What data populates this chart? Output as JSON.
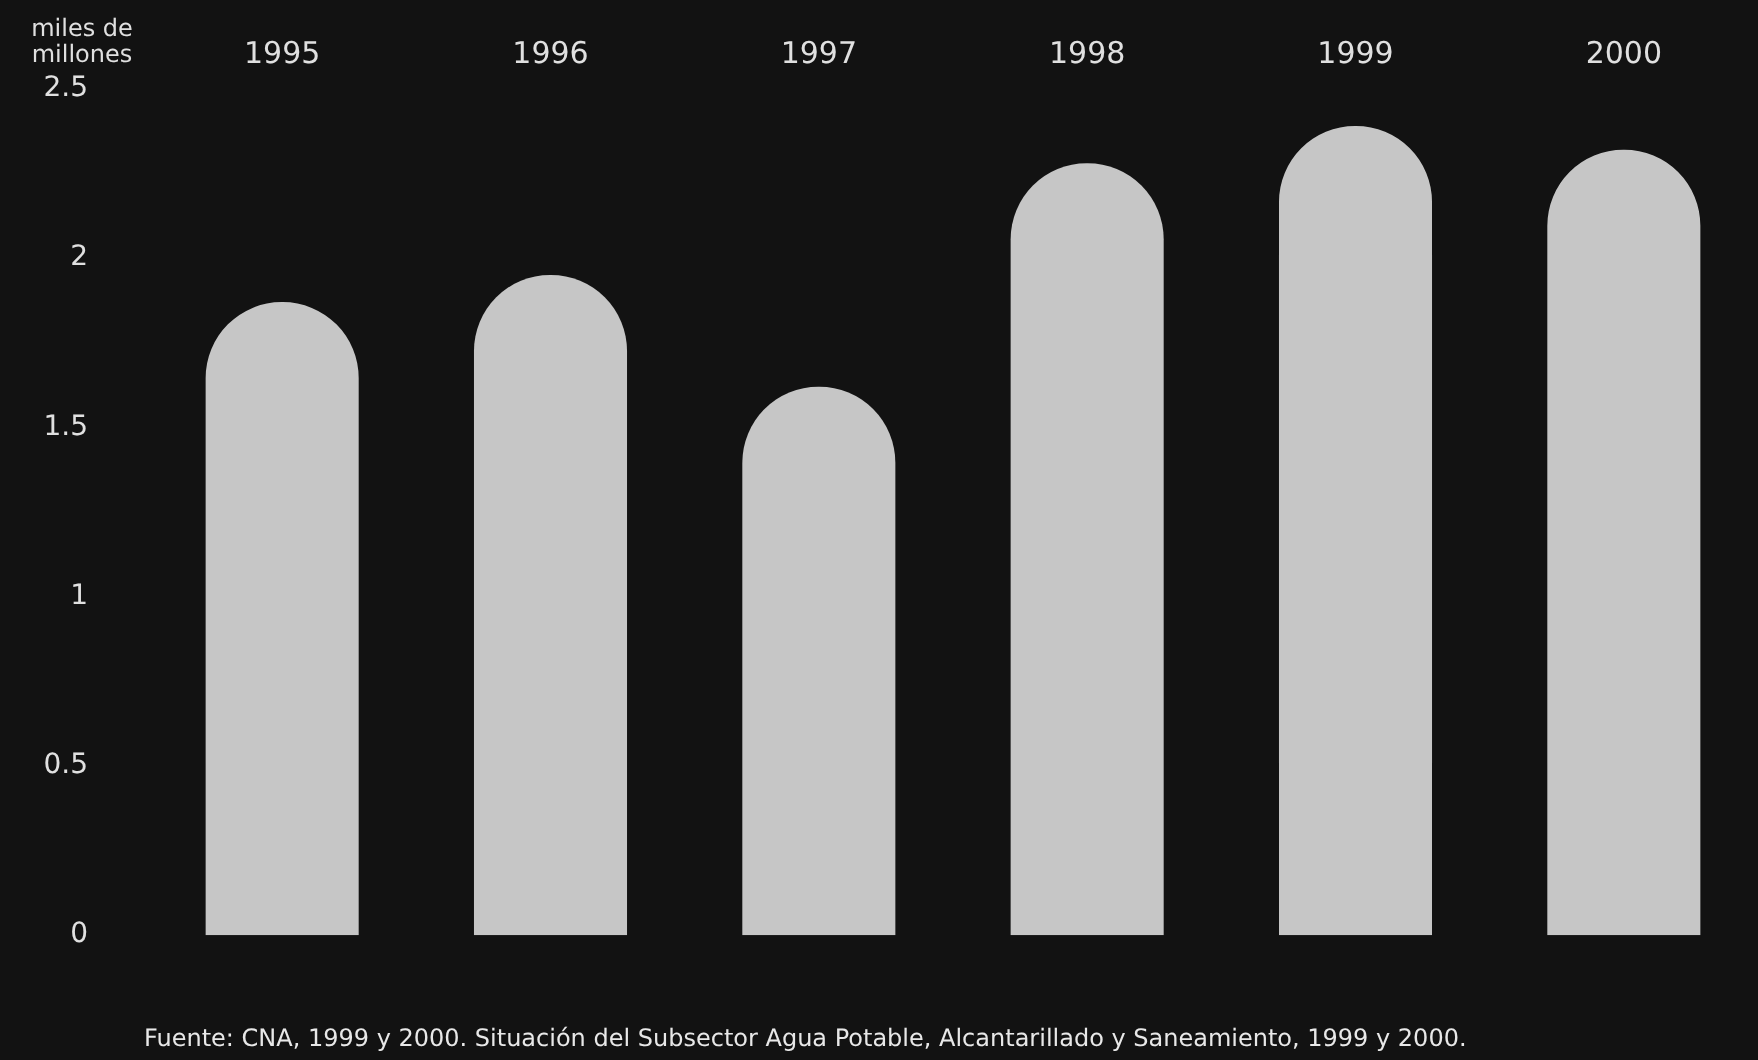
{
  "chart_data": {
    "type": "bar",
    "ylabel": "miles de millones",
    "categories": [
      "1995",
      "1996",
      "1997",
      "1998",
      "1999",
      "2000"
    ],
    "values": [
      1.87,
      1.95,
      1.62,
      2.28,
      2.39,
      2.32
    ],
    "color": "#c6c6c6",
    "ylim": [
      0,
      2.5
    ],
    "yticks": [
      0,
      0.5,
      1,
      1.5,
      2,
      2.5
    ],
    "grid": false,
    "legend": false,
    "annotations": [
      "Fuente: CNA, 1999 y 2000. Situación del Subsector Agua Potable, Alcantarillado y Saneamiento, 1999 y 2000."
    ]
  }
}
